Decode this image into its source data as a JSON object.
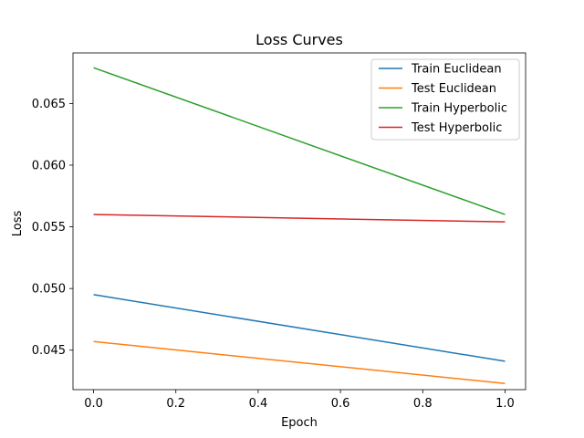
{
  "chart_data": {
    "type": "line",
    "title": "Loss Curves",
    "xlabel": "Epoch",
    "ylabel": "Loss",
    "xlim": [
      -0.05,
      1.05
    ],
    "ylim": [
      0.0418,
      0.0691
    ],
    "x_ticks": [
      0.0,
      0.2,
      0.4,
      0.6,
      0.8,
      1.0
    ],
    "x_tick_labels": [
      "0.0",
      "0.2",
      "0.4",
      "0.6",
      "0.8",
      "1.0"
    ],
    "y_ticks": [
      0.045,
      0.05,
      0.055,
      0.06,
      0.065
    ],
    "y_tick_labels": [
      "0.045",
      "0.050",
      "0.055",
      "0.060",
      "0.065"
    ],
    "grid": false,
    "legend_position": "top-right",
    "x": [
      0.0,
      1.0
    ],
    "series": [
      {
        "name": "Train Euclidean",
        "color": "#1f77b4",
        "values": [
          0.0495,
          0.0441
        ]
      },
      {
        "name": "Test Euclidean",
        "color": "#ff7f0e",
        "values": [
          0.0457,
          0.0423
        ]
      },
      {
        "name": "Train Hyperbolic",
        "color": "#2ca02c",
        "values": [
          0.0679,
          0.056
        ]
      },
      {
        "name": "Test Hyperbolic",
        "color": "#d62728",
        "values": [
          0.056,
          0.0554
        ]
      }
    ]
  }
}
